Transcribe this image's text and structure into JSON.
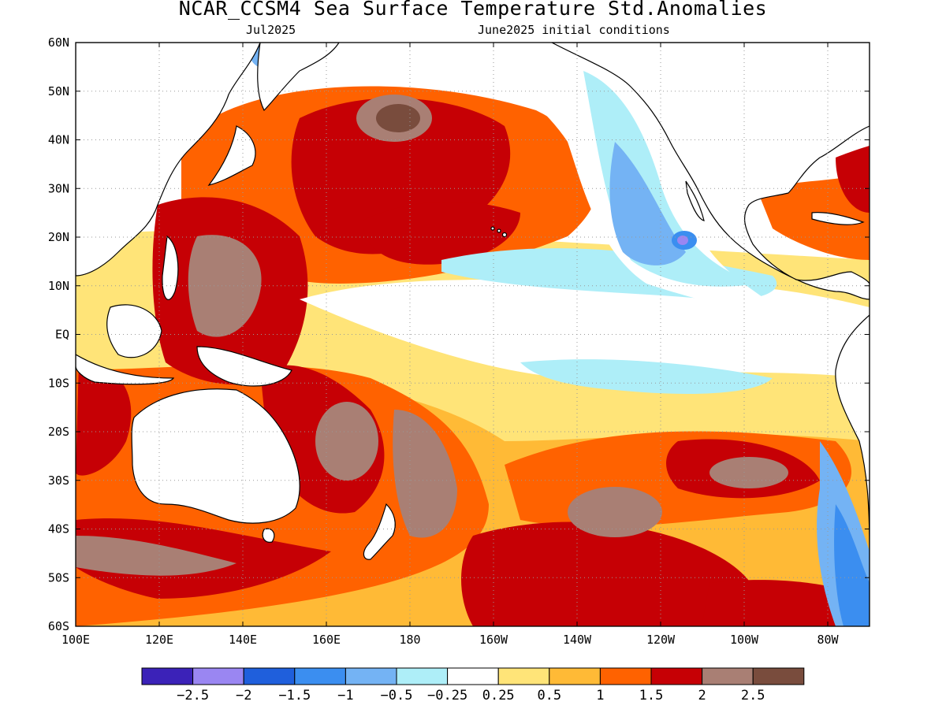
{
  "title": "NCAR_CCSM4 Sea Surface Temperature Std.Anomalies",
  "subtitle_left": "Jul2025",
  "subtitle_right": "June2025 initial conditions",
  "lat_labels": [
    "60N",
    "50N",
    "40N",
    "30N",
    "20N",
    "10N",
    "EQ",
    "10S",
    "20S",
    "30S",
    "40S",
    "50S",
    "60S"
  ],
  "lon_labels": [
    "100E",
    "120E",
    "140E",
    "160E",
    "180",
    "160W",
    "140W",
    "120W",
    "100W",
    "80W"
  ],
  "colorbar": {
    "colors": [
      "#3b22b8",
      "#9a86f2",
      "#1f5fdc",
      "#3b8ef0",
      "#74b3f4",
      "#aeeef8",
      "#ffffff",
      "#ffe478",
      "#ffba36",
      "#ff6200",
      "#c60005",
      "#a97f74",
      "#794c3d"
    ],
    "labels": [
      "-2.5",
      "-2",
      "-1.5",
      "-1",
      "-0.5",
      "-0.25",
      "0.25",
      "0.5",
      "1",
      "1.5",
      "2",
      "2.5"
    ]
  },
  "colors": {
    "land": "#ffffff",
    "coast": "#000000",
    "grid": "#999999"
  }
}
